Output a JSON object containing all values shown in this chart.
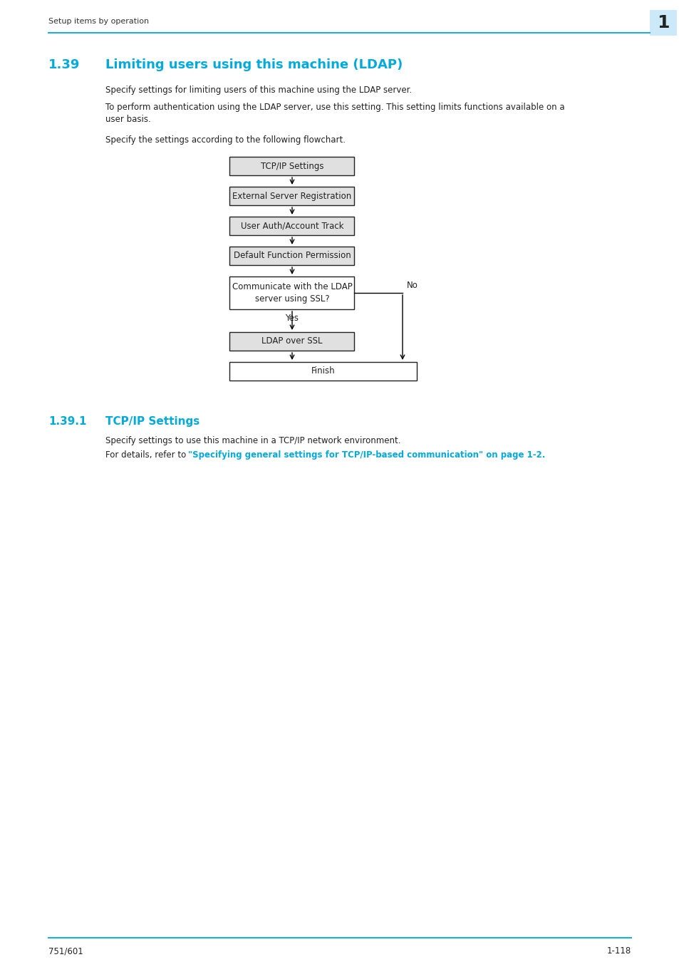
{
  "page_header_text": "Setup items by operation",
  "page_number_box": "1",
  "page_number_box_color": "#cce9f9",
  "header_line_color": "#1aafdf",
  "section_number": "1.39",
  "section_title": "Limiting users using this machine (LDAP)",
  "section_color": "#00aadd",
  "para1": "Specify settings for limiting users of this machine using the LDAP server.",
  "para2": "To perform authentication using the LDAP server, use this setting. This setting limits functions available on a\nuser basis.",
  "para3": "Specify the settings according to the following flowchart.",
  "subsection_number": "1.39.1",
  "subsection_title": "TCP/IP Settings",
  "subsection_para1": "Specify settings to use this machine in a TCP/IP network environment.",
  "subsection_link_text": "\"Specifying general settings for TCP/IP-based communication\" on page 1-2.",
  "flowchart_boxes": [
    "TCP/IP Settings",
    "External Server Registration",
    "User Auth/Account Track",
    "Default Function Permission",
    "Communicate with the LDAP\nserver using SSL?",
    "LDAP over SSL",
    "Finish"
  ],
  "yes_label": "Yes",
  "no_label": "No",
  "footer_left": "751/601",
  "footer_right": "1-118",
  "footer_line_color": "#1aafdf",
  "body_text_color": "#222222",
  "link_color": "#00aadd",
  "box_bg": "#e0e0e0",
  "box_border": "#333333"
}
